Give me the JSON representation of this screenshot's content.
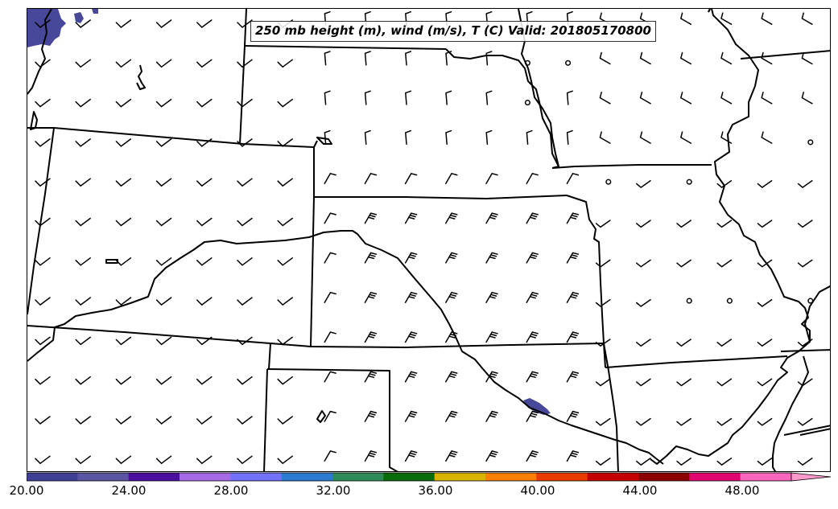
{
  "map": {
    "title": "250 mb height (m), wind (m/s), T (C) Valid: 201805170800"
  },
  "colorbar": {
    "colors": [
      "#3f3f96",
      "#5a54a3",
      "#4b0fa0",
      "#a76ae6",
      "#7272ff",
      "#2d7bd0",
      "#2e8b57",
      "#0a6b0a",
      "#d8b400",
      "#ff8000",
      "#e93a00",
      "#c40000",
      "#8b0000",
      "#e0066d",
      "#ff66bb"
    ],
    "extend_color": "#ff99cc",
    "tick_labels": [
      "20.00",
      "24.00",
      "28.00",
      "32.00",
      "36.00",
      "40.00",
      "44.00",
      "48.00"
    ]
  },
  "shading": {
    "color": "#48489a"
  }
}
